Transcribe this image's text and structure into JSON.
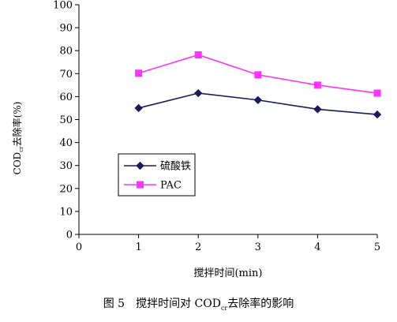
{
  "chart_data": {
    "type": "line",
    "x": [
      1,
      2,
      3,
      4,
      5
    ],
    "xlim": [
      0,
      5
    ],
    "ylim": [
      0,
      100
    ],
    "xticks": [
      "0",
      "1",
      "2",
      "3",
      "4",
      "5"
    ],
    "yticks": [
      "0",
      "10",
      "20",
      "30",
      "40",
      "50",
      "60",
      "70",
      "80",
      "90",
      "100"
    ],
    "xlabel": "搅拌时间(min)",
    "ylabel_main": "COD",
    "ylabel_sub": "cr",
    "ylabel_rest": "去除率(%)",
    "series": [
      {
        "name": "硫酸铁",
        "color": "#1a1a5e",
        "marker": "diamond",
        "values": [
          55,
          61.5,
          58.5,
          54.5,
          52.2
        ]
      },
      {
        "name": "PAC",
        "color": "#ff33ff",
        "marker": "square",
        "values": [
          70.2,
          78.2,
          69.5,
          65.0,
          61.5
        ]
      }
    ],
    "legend_position": "lower-left",
    "grid": false
  },
  "caption": {
    "prefix": "图 5　搅拌时间对 COD",
    "sub": "cr",
    "suffix": "去除率的影响"
  }
}
